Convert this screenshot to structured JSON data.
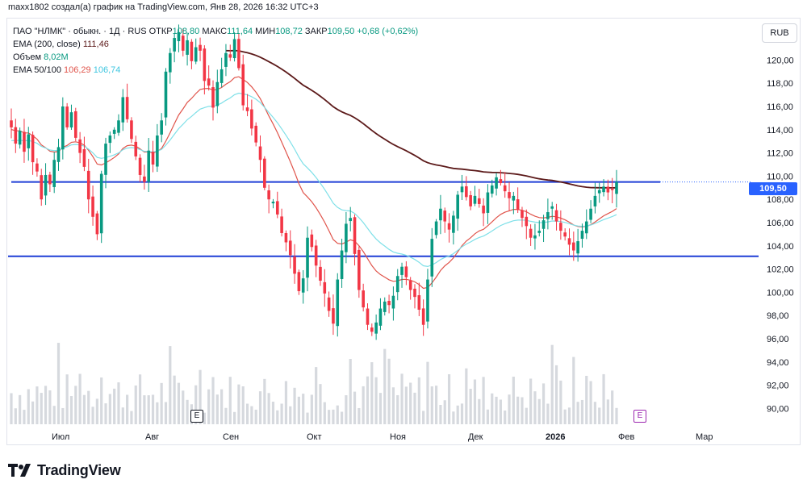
{
  "caption": "maxx1802 создал(а) график на TradingView.com, Янв 28, 2026 16:32 UTC+3",
  "legend": {
    "title": "ПАО \"НЛМК\" · обыкн. · 1Д · RUS",
    "o_label": "ОТКР",
    "o_value": "108,80",
    "h_label": "МАКС",
    "h_value": "111,64",
    "l_label": "МИН",
    "l_value": "108,72",
    "c_label": "ЗАКР",
    "c_value": "109,50",
    "change": "+0,68 (+0,62%)",
    "ema200_label": "EMA (200, close)",
    "ema200_value": "111,46",
    "volume_label": "Объем",
    "volume_value": "8,02M",
    "ema50_100_label": "EMA 50/100",
    "ema50_value": "106,29",
    "ema100_value": "106,74"
  },
  "currency": "RUB",
  "price_tag": "109,50",
  "logo_text": "TradingView",
  "events": {
    "past": "E",
    "future": "E"
  },
  "colors": {
    "up": "#089981",
    "down": "#f23645",
    "ema200": "#5c1a1a",
    "ema50": "#e0544b",
    "ema100": "#7fe0e8",
    "hline": "#1f3fd6",
    "volume": "#d6d9de"
  },
  "chart_data": {
    "type": "candlestick",
    "y_axis": {
      "min": 88.5,
      "max": 123.5,
      "ticks": [
        "90,00",
        "92,00",
        "94,00",
        "96,00",
        "98,00",
        "100,00",
        "102,00",
        "104,00",
        "106,00",
        "108,00",
        "110,00",
        "112,00",
        "114,00",
        "116,00",
        "118,00",
        "120,00"
      ]
    },
    "x_axis": {
      "ticks": [
        "Июл",
        "Авг",
        "Сен",
        "Окт",
        "Ноя",
        "Дек",
        "2026",
        "Фев",
        "Мар"
      ]
    },
    "horizontal_lines": [
      109.5,
      103.1
    ],
    "close": [
      114.2,
      112.8,
      113.9,
      112.1,
      113.6,
      111.2,
      110.4,
      108.0,
      110.1,
      109.3,
      111.4,
      112.5,
      116.0,
      114.2,
      115.5,
      113.3,
      112.0,
      110.8,
      108.0,
      106.5,
      105.0,
      110.2,
      112.8,
      113.5,
      114.0,
      114.8,
      116.8,
      114.9,
      113.2,
      111.7,
      110.1,
      109.5,
      112.2,
      111.0,
      113.5,
      114.8,
      119.0,
      120.6,
      121.9,
      122.4,
      120.8,
      121.7,
      119.9,
      121.1,
      120.8,
      118.2,
      117.8,
      115.9,
      118.1,
      119.2,
      120.6,
      120.2,
      121.8,
      119.3,
      116.1,
      115.6,
      114.1,
      112.9,
      111.4,
      109.0,
      108.0,
      107.8,
      106.7,
      105.1,
      104.3,
      103.2,
      101.6,
      100.1,
      101.2,
      104.7,
      103.9,
      102.3,
      101.0,
      99.9,
      98.4,
      97.3,
      101.1,
      103.6,
      105.9,
      106.4,
      103.3,
      100.2,
      98.7,
      97.2,
      96.6,
      97.4,
      98.6,
      99.2,
      98.9,
      99.7,
      101.4,
      102.2,
      101.3,
      100.2,
      99.6,
      98.5,
      97.2,
      101.1,
      104.6,
      106.1,
      107.2,
      106.1,
      105.4,
      106.6,
      108.4,
      109.1,
      108.2,
      107.4,
      108.3,
      107.6,
      106.8,
      108.6,
      109.2,
      109.9,
      109.4,
      108.7,
      108.1,
      108.3,
      107.1,
      106.4,
      105.7,
      104.7,
      104.9,
      105.3,
      106.2,
      106.9,
      107.4,
      106.1,
      105.3,
      104.8,
      104.1,
      103.6,
      104.4,
      105.3,
      106.1,
      107.2,
      108.3,
      108.8,
      109.1,
      108.6,
      108.8,
      109.5
    ]
  }
}
